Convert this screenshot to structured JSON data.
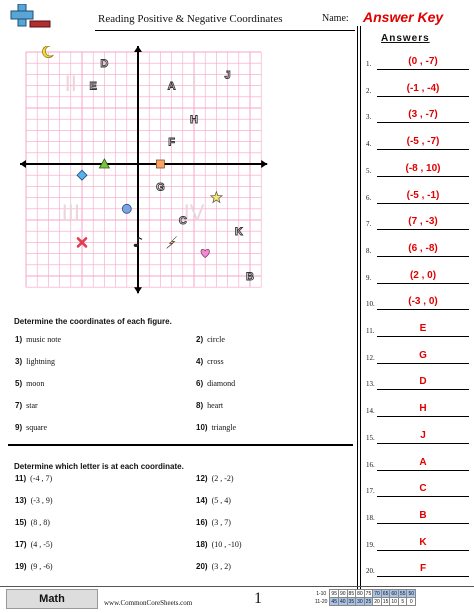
{
  "header": {
    "title": "Reading Positive & Negative Coordinates",
    "name_label": "Name:",
    "answer_key": "Answer Key"
  },
  "answers": {
    "heading": "Answers",
    "items": [
      {
        "n": "1.",
        "v": "(0 , -7)"
      },
      {
        "n": "2.",
        "v": "(-1 , -4)"
      },
      {
        "n": "3.",
        "v": "(3 , -7)"
      },
      {
        "n": "4.",
        "v": "(-5 , -7)"
      },
      {
        "n": "5.",
        "v": "(-8 , 10)"
      },
      {
        "n": "6.",
        "v": "(-5 , -1)"
      },
      {
        "n": "7.",
        "v": "(7 , -3)"
      },
      {
        "n": "8.",
        "v": "(6 , -8)"
      },
      {
        "n": "9.",
        "v": "(2 , 0)"
      },
      {
        "n": "10.",
        "v": "(-3 , 0)"
      },
      {
        "n": "11.",
        "v": "E"
      },
      {
        "n": "12.",
        "v": "G"
      },
      {
        "n": "13.",
        "v": "D"
      },
      {
        "n": "14.",
        "v": "H"
      },
      {
        "n": "15.",
        "v": "J"
      },
      {
        "n": "16.",
        "v": "A"
      },
      {
        "n": "17.",
        "v": "C"
      },
      {
        "n": "18.",
        "v": "B"
      },
      {
        "n": "19.",
        "v": "K"
      },
      {
        "n": "20.",
        "v": "F"
      }
    ]
  },
  "grid": {
    "quadrants": [
      "I",
      "II",
      "III",
      "IV"
    ],
    "letters": [
      {
        "label": "D",
        "x": -3,
        "y": 9
      },
      {
        "label": "E",
        "x": -4,
        "y": 7
      },
      {
        "label": "A",
        "x": 3,
        "y": 7
      },
      {
        "label": "J",
        "x": 8,
        "y": 8
      },
      {
        "label": "H",
        "x": 5,
        "y": 4
      },
      {
        "label": "F",
        "x": 3,
        "y": 2
      },
      {
        "label": "G",
        "x": 2,
        "y": -2
      },
      {
        "label": "C",
        "x": 4,
        "y": -5
      },
      {
        "label": "K",
        "x": 9,
        "y": -6
      },
      {
        "label": "B",
        "x": 10,
        "y": -10
      }
    ],
    "figures": [
      {
        "name": "music-note-icon",
        "x": 0,
        "y": -7
      },
      {
        "name": "circle-icon",
        "x": -1,
        "y": -4
      },
      {
        "name": "lightning-icon",
        "x": 3,
        "y": -7
      },
      {
        "name": "cross-icon",
        "x": -5,
        "y": -7
      },
      {
        "name": "moon-icon",
        "x": -8,
        "y": 10
      },
      {
        "name": "diamond-icon",
        "x": -5,
        "y": -1
      },
      {
        "name": "star-icon",
        "x": 7,
        "y": -3
      },
      {
        "name": "heart-icon",
        "x": 6,
        "y": -8
      },
      {
        "name": "square-icon",
        "x": 2,
        "y": 0
      },
      {
        "name": "triangle-icon",
        "x": -3,
        "y": 0
      }
    ],
    "colors": {
      "grid": "#f4a6c8",
      "accent": "#e00000"
    }
  },
  "part1": {
    "heading": "Determine the coordinates of each figure.",
    "items": [
      {
        "n": "1)",
        "t": "music note"
      },
      {
        "n": "2)",
        "t": "circle"
      },
      {
        "n": "3)",
        "t": "lightning"
      },
      {
        "n": "4)",
        "t": "cross"
      },
      {
        "n": "5)",
        "t": "moon"
      },
      {
        "n": "6)",
        "t": "diamond"
      },
      {
        "n": "7)",
        "t": "star"
      },
      {
        "n": "8)",
        "t": "heart"
      },
      {
        "n": "9)",
        "t": "square"
      },
      {
        "n": "10)",
        "t": "triangle"
      }
    ]
  },
  "part2": {
    "heading": "Determine which letter is at each coordinate.",
    "items": [
      {
        "n": "11)",
        "t": "(-4 , 7)"
      },
      {
        "n": "12)",
        "t": "(2 , -2)"
      },
      {
        "n": "13)",
        "t": "(-3 , 9)"
      },
      {
        "n": "14)",
        "t": "(5 , 4)"
      },
      {
        "n": "15)",
        "t": "(8 , 8)"
      },
      {
        "n": "16)",
        "t": "(3 , 7)"
      },
      {
        "n": "17)",
        "t": "(4 , -5)"
      },
      {
        "n": "18)",
        "t": "(10 , -10)"
      },
      {
        "n": "19)",
        "t": "(9 , -6)"
      },
      {
        "n": "20)",
        "t": "(3 , 2)"
      }
    ]
  },
  "footer": {
    "subject": "Math",
    "site": "www.CommonCoreSheets.com",
    "page": "1",
    "score_rows": [
      {
        "label": "1-10",
        "vals": [
          "95",
          "90",
          "85",
          "80",
          "75",
          "70",
          "65",
          "60",
          "55",
          "50"
        ]
      },
      {
        "label": "11-20",
        "vals": [
          "45",
          "40",
          "35",
          "30",
          "25",
          "20",
          "15",
          "10",
          "5",
          "0"
        ]
      }
    ]
  }
}
